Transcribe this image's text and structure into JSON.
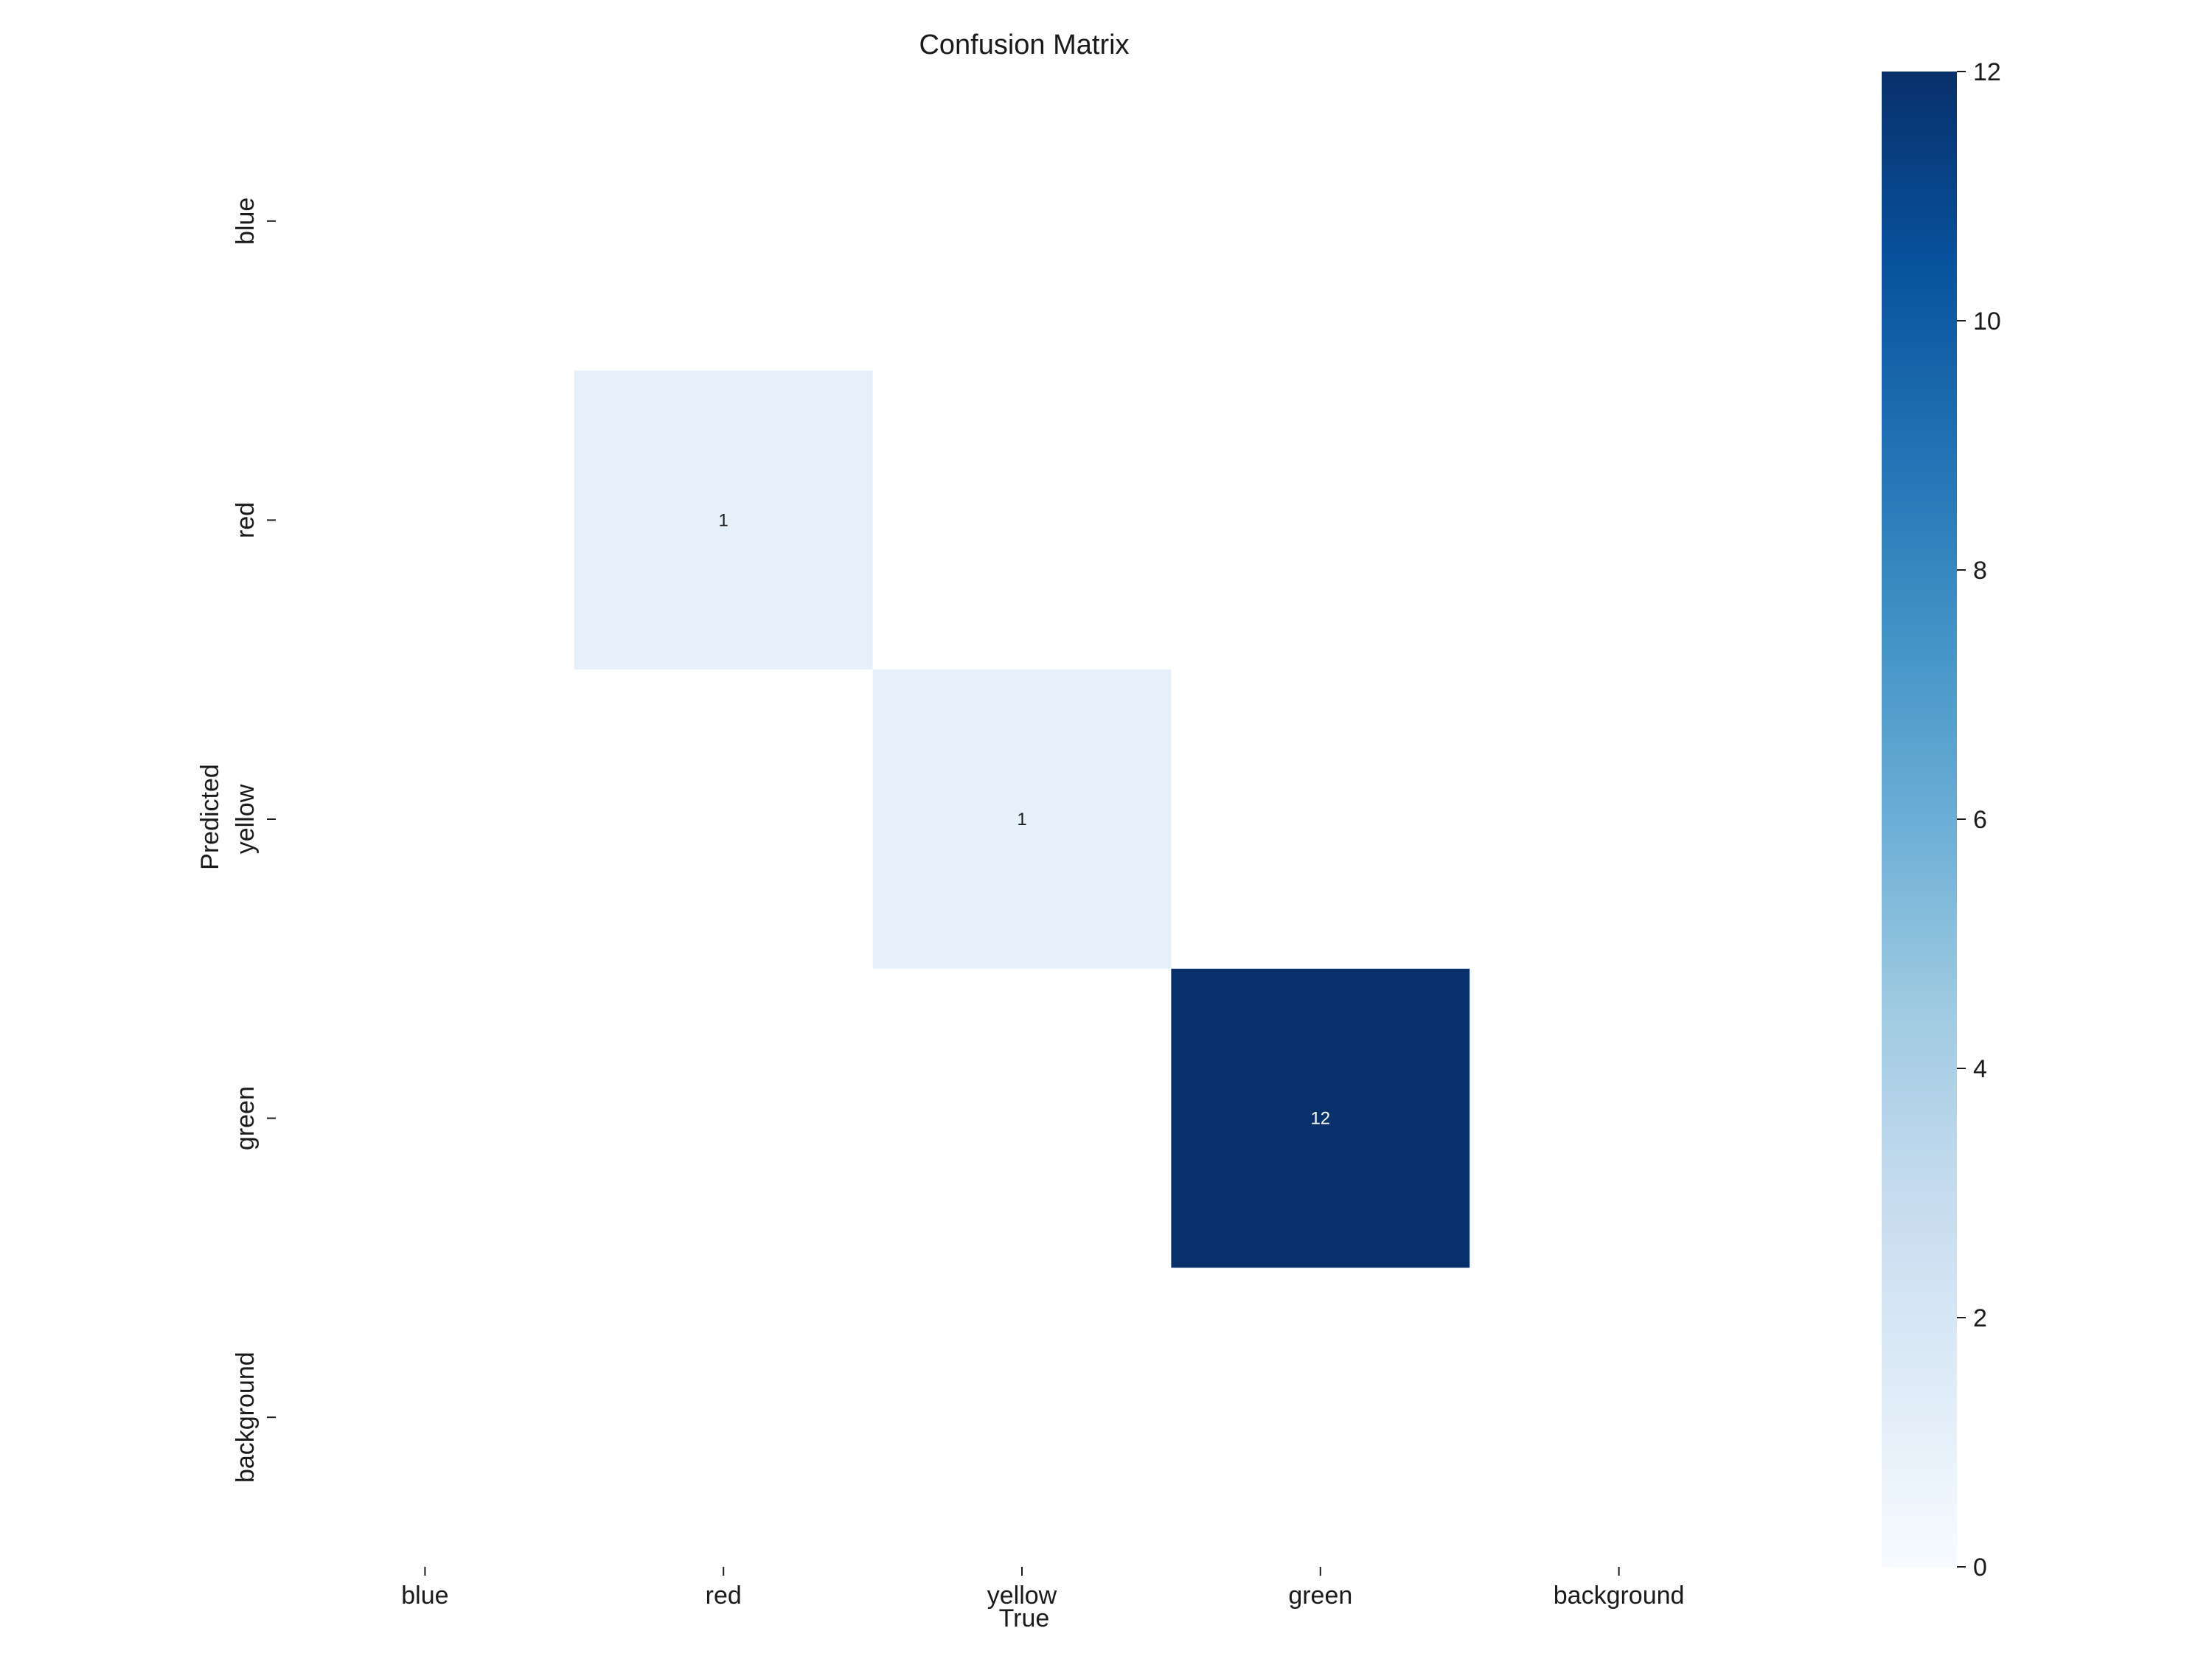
{
  "chart_data": {
    "type": "heatmap",
    "title": "Confusion Matrix",
    "xlabel": "True",
    "ylabel": "Predicted",
    "x_categories": [
      "blue",
      "red",
      "yellow",
      "green",
      "background"
    ],
    "y_categories": [
      "blue",
      "red",
      "yellow",
      "green",
      "background"
    ],
    "values": [
      [
        0,
        0,
        0,
        0,
        0
      ],
      [
        0,
        1,
        0,
        0,
        0
      ],
      [
        0,
        0,
        1,
        0,
        0
      ],
      [
        0,
        0,
        0,
        12,
        0
      ],
      [
        0,
        0,
        0,
        0,
        0
      ]
    ],
    "zero_cells_blank": true,
    "colormap": "Blues",
    "colors": {
      "low": "#f7fbff",
      "high": "#08306b"
    },
    "colorbar": {
      "range": [
        0,
        12
      ],
      "ticks": [
        0,
        2,
        4,
        6,
        8,
        10,
        12
      ]
    },
    "grid": false
  }
}
